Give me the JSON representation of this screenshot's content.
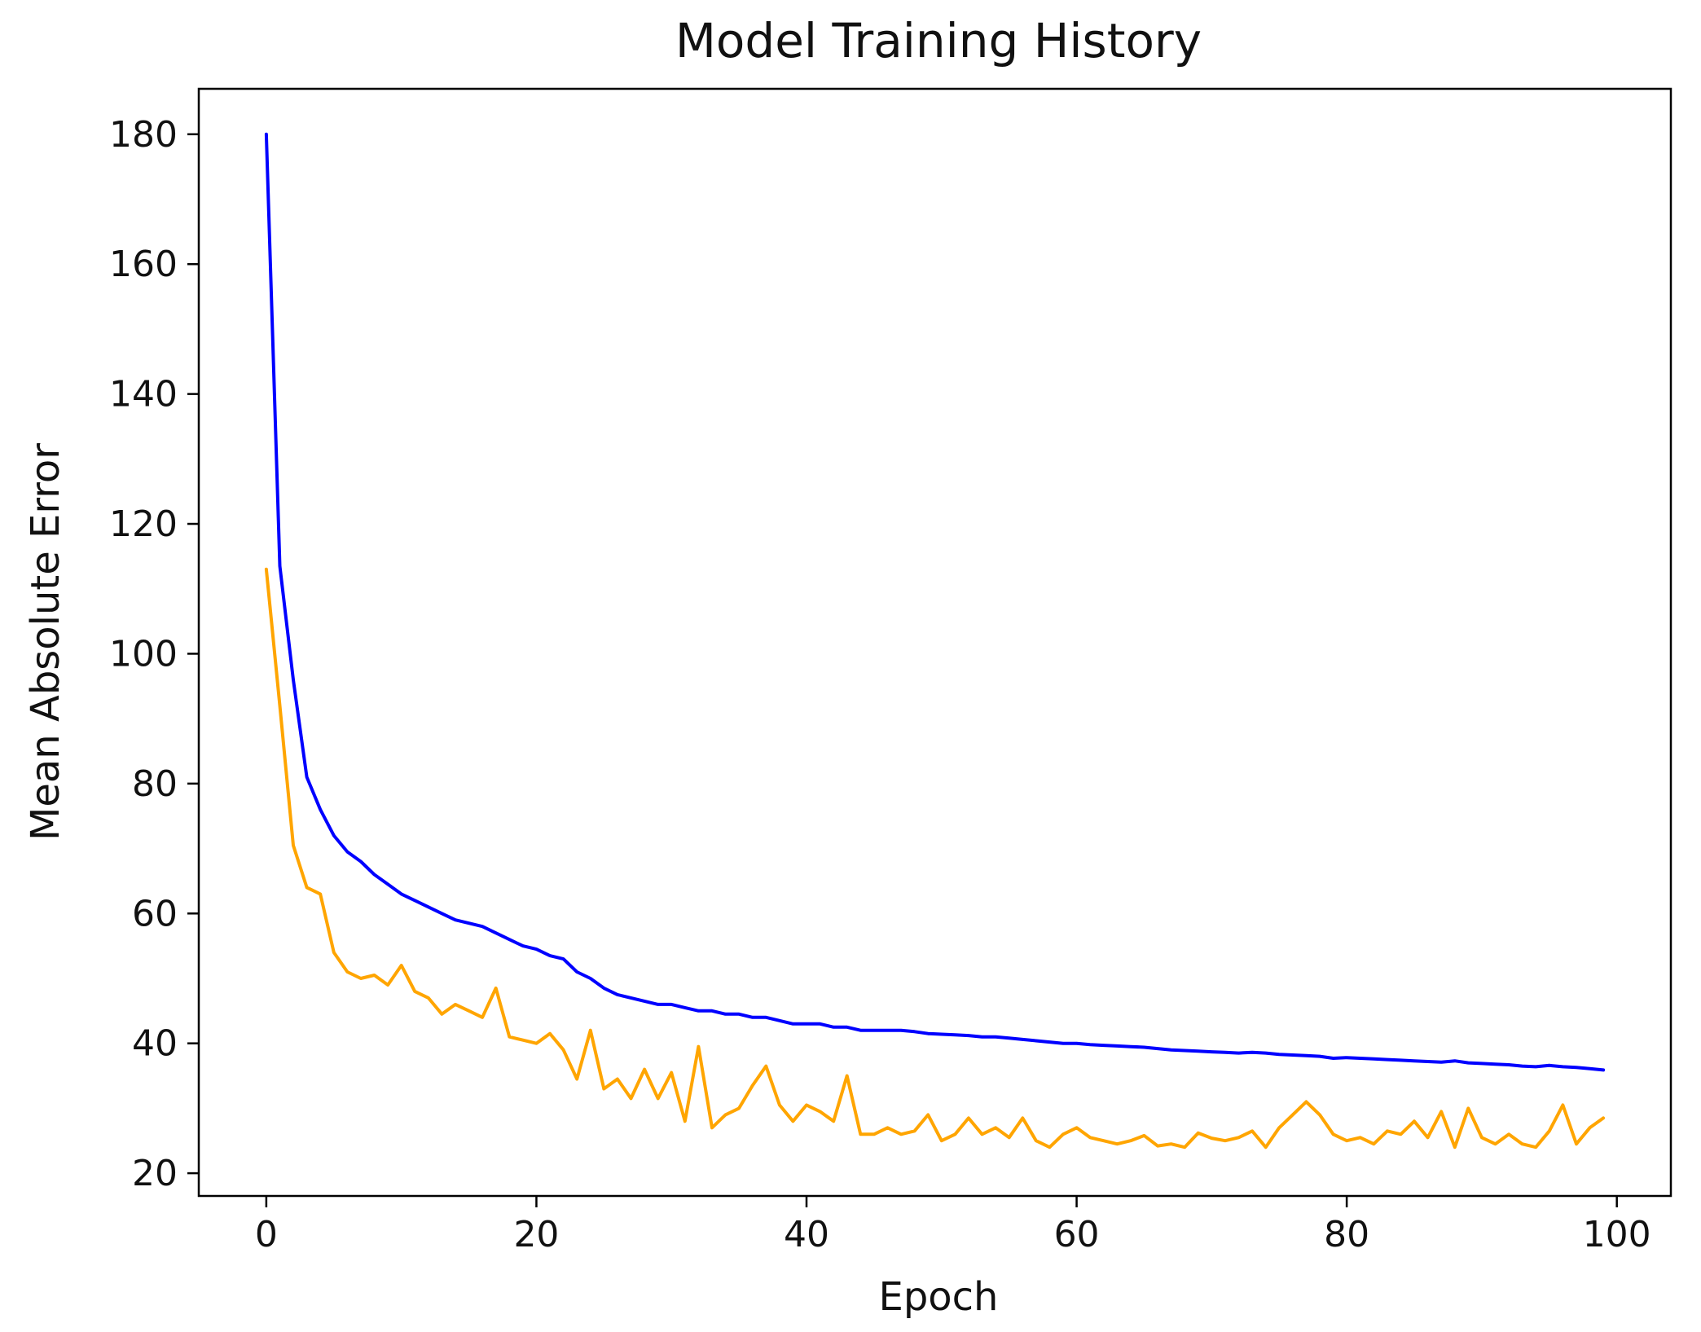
{
  "chart_data": {
    "type": "line",
    "title": "Model Training History",
    "xlabel": "Epoch",
    "ylabel": "Mean Absolute Error",
    "xlim": [
      -5,
      104
    ],
    "ylim": [
      16.5,
      187
    ],
    "x_ticks": [
      0,
      20,
      40,
      60,
      80,
      100
    ],
    "y_ticks": [
      20,
      40,
      60,
      80,
      100,
      120,
      140,
      160,
      180
    ],
    "x_tick_labels": [
      "0",
      "20",
      "40",
      "60",
      "80",
      "100"
    ],
    "y_tick_labels": [
      "20",
      "40",
      "60",
      "80",
      "100",
      "120",
      "140",
      "160",
      "180"
    ],
    "grid": false,
    "legend": false,
    "series": [
      {
        "color": "#0000ff",
        "values": [
          180,
          113.5,
          96,
          81,
          76,
          72,
          69.5,
          68,
          66,
          64.5,
          63,
          62,
          61,
          60,
          59,
          58.5,
          58,
          57,
          56,
          55,
          54.5,
          53.5,
          53,
          51,
          50,
          48.5,
          47.5,
          47,
          46.5,
          46,
          46,
          45.5,
          45,
          45,
          44.5,
          44.5,
          44,
          44,
          43.5,
          43,
          43,
          43,
          42.5,
          42.5,
          42,
          42,
          42,
          42,
          41.8,
          41.5,
          41.4,
          41.3,
          41.2,
          41,
          41,
          40.8,
          40.6,
          40.4,
          40.2,
          40,
          40,
          39.8,
          39.7,
          39.6,
          39.5,
          39.4,
          39.2,
          39,
          38.9,
          38.8,
          38.7,
          38.6,
          38.5,
          38.6,
          38.5,
          38.3,
          38.2,
          38.1,
          38,
          37.7,
          37.8,
          37.7,
          37.6,
          37.5,
          37.4,
          37.3,
          37.2,
          37.1,
          37.3,
          37,
          36.9,
          36.8,
          36.7,
          36.5,
          36.4,
          36.6,
          36.4,
          36.3,
          36.1,
          35.9
        ]
      },
      {
        "color": "#ffa500",
        "values": [
          113,
          92,
          70.5,
          64,
          63,
          54,
          51,
          50,
          50.5,
          49,
          52,
          48,
          47,
          44.5,
          46,
          45,
          44,
          48.5,
          41,
          40.5,
          40,
          41.5,
          39,
          34.5,
          42,
          33,
          34.5,
          31.5,
          36,
          31.5,
          35.5,
          28,
          39.5,
          27,
          29,
          30,
          33.5,
          36.5,
          30.5,
          28,
          30.5,
          29.5,
          28,
          35,
          26,
          26,
          27,
          26,
          26.5,
          29,
          25,
          26,
          28.5,
          26,
          27,
          25.5,
          28.5,
          25,
          24,
          26,
          27,
          25.5,
          25,
          24.5,
          25,
          25.8,
          24.2,
          24.5,
          24,
          26.2,
          25.4,
          25,
          25.5,
          26.5,
          24,
          27,
          29,
          31,
          29,
          26,
          25,
          25.5,
          24.5,
          26.5,
          26,
          28,
          25.5,
          29.5,
          24,
          30,
          25.5,
          24.5,
          26,
          24.5,
          24,
          26.5,
          30.5,
          24.5,
          27,
          28.5
        ]
      }
    ]
  }
}
